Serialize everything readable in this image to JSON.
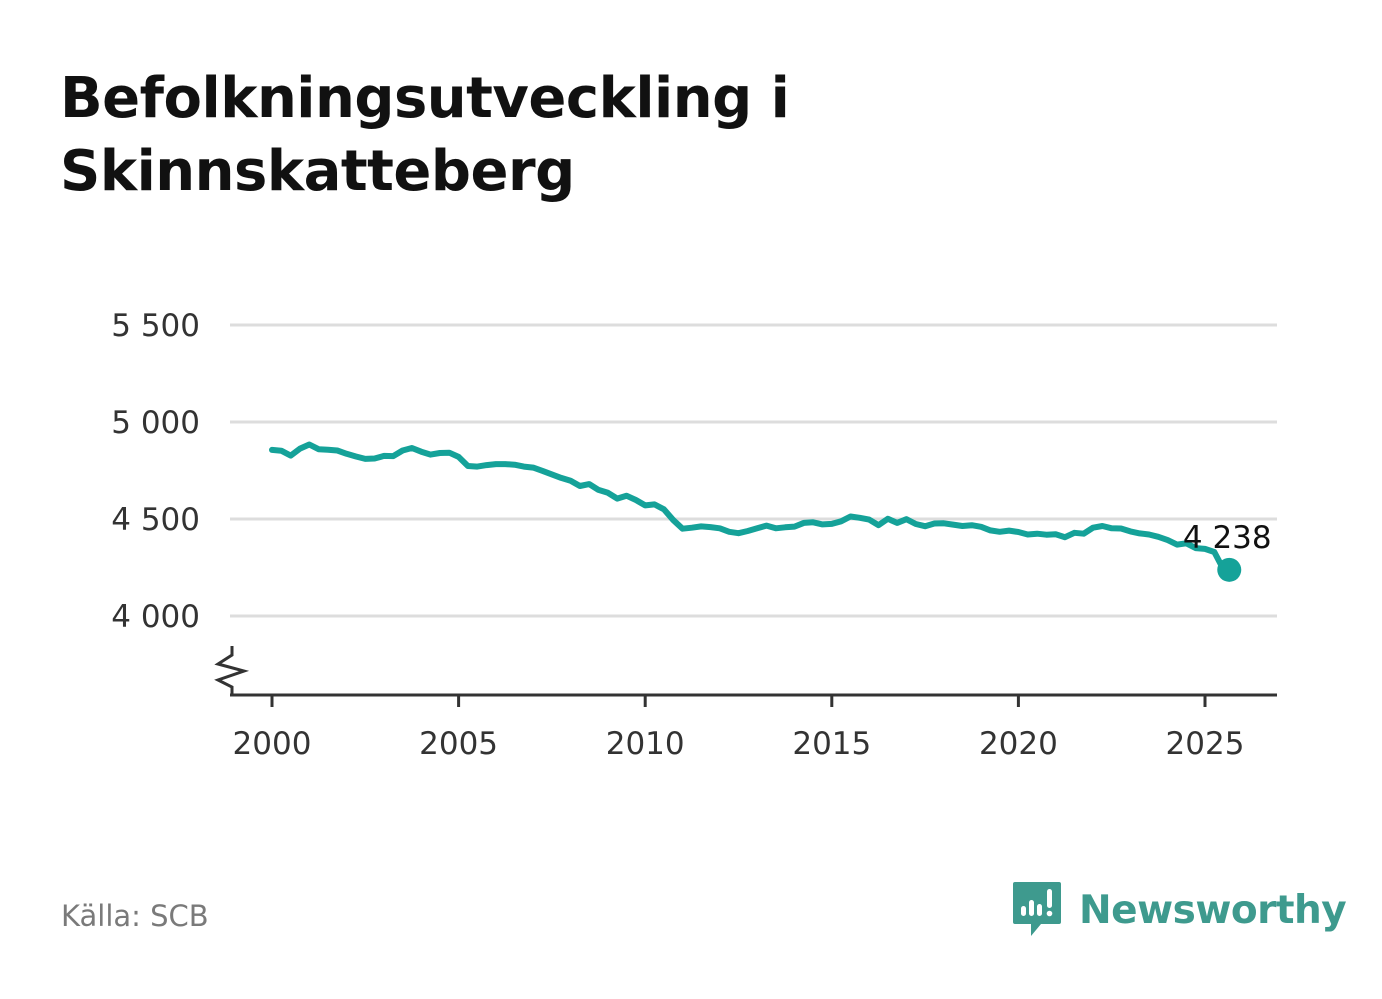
{
  "title_line1": "Befolkningsutveckling i",
  "title_line2": "Skinnskatteberg",
  "source": "Källa: SCB",
  "brand": "Newsworthy",
  "colors": {
    "line": "#15a299",
    "grid": "#dddddd",
    "axis": "#333333",
    "text": "#333333",
    "logo": "#3e9a8e"
  },
  "chart_data": {
    "type": "line",
    "title": "Befolkningsutveckling i Skinnskatteberg",
    "xlabel": "",
    "ylabel": "",
    "x_ticks": [
      "2000",
      "2005",
      "2010",
      "2015",
      "2020",
      "2025"
    ],
    "y_ticks": [
      {
        "value": 4000,
        "label": "4 000"
      },
      {
        "value": 4500,
        "label": "4 500"
      },
      {
        "value": 5000,
        "label": "5 000"
      },
      {
        "value": 5500,
        "label": "5 500"
      }
    ],
    "xlim": [
      1999,
      2027
    ],
    "ylim": [
      3600,
      5500
    ],
    "axis_break": true,
    "grid": true,
    "last_value_label": "4 238",
    "series": [
      {
        "name": "Befolkning",
        "x": [
          2000.0,
          2000.25,
          2000.5,
          2000.75,
          2001.0,
          2001.25,
          2001.5,
          2001.75,
          2002.0,
          2002.25,
          2002.5,
          2002.75,
          2003.0,
          2003.25,
          2003.5,
          2003.75,
          2004.0,
          2004.25,
          2004.5,
          2004.75,
          2005.0,
          2005.25,
          2005.5,
          2005.75,
          2006.0,
          2006.25,
          2006.5,
          2006.75,
          2007.0,
          2007.25,
          2007.5,
          2007.75,
          2008.0,
          2008.25,
          2008.5,
          2008.75,
          2009.0,
          2009.25,
          2009.5,
          2009.75,
          2010.0,
          2010.25,
          2010.5,
          2010.75,
          2011.0,
          2011.25,
          2011.5,
          2011.75,
          2012.0,
          2012.25,
          2012.5,
          2012.75,
          2013.0,
          2013.25,
          2013.5,
          2013.75,
          2014.0,
          2014.25,
          2014.5,
          2014.75,
          2015.0,
          2015.25,
          2015.5,
          2015.75,
          2016.0,
          2016.25,
          2016.5,
          2016.75,
          2017.0,
          2017.25,
          2017.5,
          2017.75,
          2018.0,
          2018.25,
          2018.5,
          2018.75,
          2019.0,
          2019.25,
          2019.5,
          2019.75,
          2020.0,
          2020.25,
          2020.5,
          2020.75,
          2021.0,
          2021.25,
          2021.5,
          2021.75,
          2022.0,
          2022.25,
          2022.5,
          2022.75,
          2023.0,
          2023.25,
          2023.5,
          2023.75,
          2024.0,
          2024.25,
          2024.5,
          2024.75,
          2025.0,
          2025.25,
          2025.5,
          2025.65
        ],
        "values": [
          4856,
          4852,
          4827,
          4863,
          4884,
          4860,
          4857,
          4853,
          4836,
          4822,
          4810,
          4812,
          4825,
          4824,
          4853,
          4866,
          4847,
          4832,
          4840,
          4842,
          4820,
          4773,
          4770,
          4778,
          4783,
          4783,
          4780,
          4770,
          4765,
          4748,
          4730,
          4712,
          4697,
          4670,
          4680,
          4650,
          4635,
          4605,
          4620,
          4598,
          4570,
          4575,
          4550,
          4495,
          4450,
          4455,
          4462,
          4458,
          4452,
          4434,
          4427,
          4438,
          4452,
          4466,
          4452,
          4457,
          4461,
          4480,
          4483,
          4472,
          4475,
          4488,
          4513,
          4506,
          4497,
          4468,
          4501,
          4480,
          4499,
          4474,
          4463,
          4477,
          4478,
          4471,
          4464,
          4468,
          4460,
          4441,
          4434,
          4440,
          4433,
          4420,
          4424,
          4419,
          4421,
          4406,
          4429,
          4424,
          4455,
          4464,
          4452,
          4451,
          4436,
          4426,
          4420,
          4408,
          4391,
          4368,
          4375,
          4350,
          4346,
          4330,
          4238,
          4238
        ]
      }
    ]
  }
}
